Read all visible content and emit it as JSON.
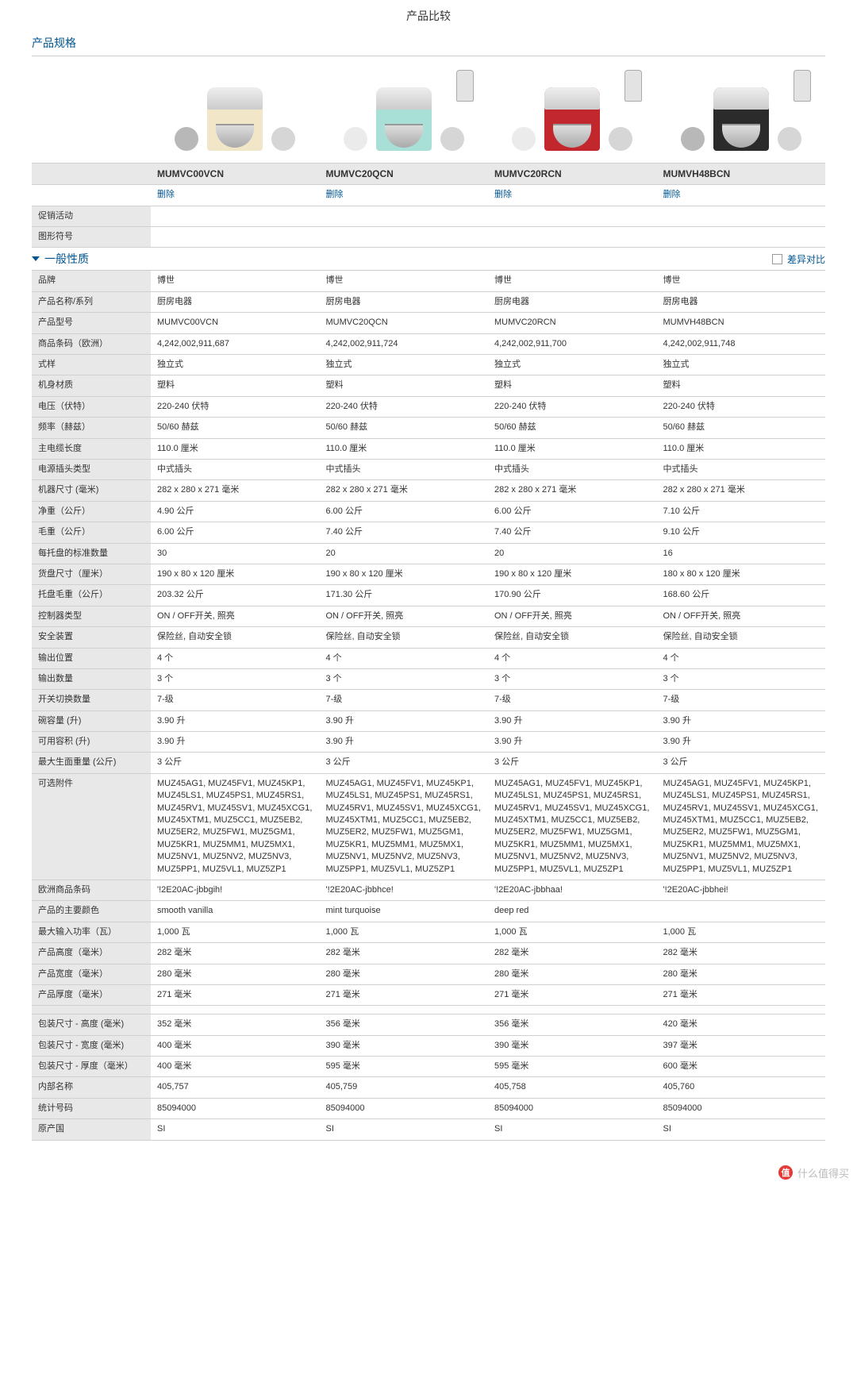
{
  "page_title": "产品比较",
  "section_spec": "产品规格",
  "section_general": "一般性质",
  "diff_label": "差异对比",
  "delete_label": "删除",
  "watermark": "什么值得买",
  "wm_badge": "值",
  "products": [
    {
      "model": "MUMVC00VCN",
      "body_color": "#f2e6c8",
      "acc_dark": true
    },
    {
      "model": "MUMVC20QCN",
      "body_color": "#a8e0d8",
      "acc_dark": false
    },
    {
      "model": "MUMVC20RCN",
      "body_color": "#c1272d",
      "acc_dark": false
    },
    {
      "model": "MUMVH48BCN",
      "body_color": "#2b2b2b",
      "acc_dark": true
    }
  ],
  "header_rows": [
    {
      "label": "促销活动",
      "vals": [
        "",
        "",
        "",
        ""
      ]
    },
    {
      "label": "图形符号",
      "vals": [
        "",
        "",
        "",
        ""
      ]
    }
  ],
  "spec_rows": [
    {
      "label": "品牌",
      "vals": [
        "博世",
        "博世",
        "博世",
        "博世"
      ]
    },
    {
      "label": "产品名称/系列",
      "vals": [
        "厨房电器",
        "厨房电器",
        "厨房电器",
        "厨房电器"
      ]
    },
    {
      "label": "产品型号",
      "vals": [
        "MUMVC00VCN",
        "MUMVC20QCN",
        "MUMVC20RCN",
        "MUMVH48BCN"
      ]
    },
    {
      "label": "商品条码（欧洲）",
      "vals": [
        "4,242,002,911,687",
        "4,242,002,911,724",
        "4,242,002,911,700",
        "4,242,002,911,748"
      ]
    },
    {
      "label": "式样",
      "vals": [
        "独立式",
        "独立式",
        "独立式",
        "独立式"
      ]
    },
    {
      "label": "机身材质",
      "vals": [
        "塑料",
        "塑料",
        "塑料",
        "塑料"
      ]
    },
    {
      "label": "电压（伏特）",
      "vals": [
        "220-240 伏特",
        "220-240 伏特",
        "220-240 伏特",
        "220-240 伏特"
      ]
    },
    {
      "label": "频率（赫兹）",
      "vals": [
        "50/60 赫兹",
        "50/60 赫兹",
        "50/60 赫兹",
        "50/60 赫兹"
      ]
    },
    {
      "label": "主电缆长度",
      "vals": [
        "110.0 厘米",
        "110.0 厘米",
        "110.0 厘米",
        "110.0 厘米"
      ]
    },
    {
      "label": "电源插头类型",
      "vals": [
        "中式插头",
        "中式插头",
        "中式插头",
        "中式插头"
      ]
    },
    {
      "label": "机器尺寸 (毫米)",
      "vals": [
        "282 x 280 x 271 毫米",
        "282 x 280 x 271 毫米",
        "282 x 280 x 271 毫米",
        "282 x 280 x 271 毫米"
      ]
    },
    {
      "label": "净重（公斤）",
      "vals": [
        "4.90 公斤",
        "6.00 公斤",
        "6.00 公斤",
        "7.10 公斤"
      ]
    },
    {
      "label": "毛重（公斤）",
      "vals": [
        "6.00 公斤",
        "7.40 公斤",
        "7.40 公斤",
        "9.10 公斤"
      ]
    },
    {
      "label": "每托盘的标准数量",
      "vals": [
        "30",
        "20",
        "20",
        "16"
      ]
    },
    {
      "label": "货盘尺寸（厘米）",
      "vals": [
        "190 x 80 x 120 厘米",
        "190 x 80 x 120 厘米",
        "190 x 80 x 120 厘米",
        "180 x 80 x 120 厘米"
      ]
    },
    {
      "label": "托盘毛重（公斤）",
      "vals": [
        "203.32 公斤",
        "171.30 公斤",
        "170.90 公斤",
        "168.60 公斤"
      ]
    },
    {
      "label": "控制器类型",
      "vals": [
        "ON / OFF开关, 照亮",
        "ON / OFF开关, 照亮",
        "ON / OFF开关, 照亮",
        "ON / OFF开关, 照亮"
      ]
    },
    {
      "label": "安全装置",
      "vals": [
        "保险丝, 自动安全锁",
        "保险丝, 自动安全锁",
        "保险丝, 自动安全锁",
        "保险丝, 自动安全锁"
      ]
    },
    {
      "label": "输出位置",
      "vals": [
        "4 个",
        "4 个",
        "4 个",
        "4 个"
      ]
    },
    {
      "label": "输出数量",
      "vals": [
        "3 个",
        "3 个",
        "3 个",
        "3 个"
      ]
    },
    {
      "label": "开关切换数量",
      "vals": [
        "7-级",
        "7-级",
        "7-级",
        "7-级"
      ]
    },
    {
      "label": "碗容量 (升)",
      "vals": [
        "3.90 升",
        "3.90 升",
        "3.90 升",
        "3.90 升"
      ]
    },
    {
      "label": "可用容积 (升)",
      "vals": [
        "3.90 升",
        "3.90 升",
        "3.90 升",
        "3.90 升"
      ]
    },
    {
      "label": "最大生面重量 (公斤)",
      "vals": [
        "3 公斤",
        "3 公斤",
        "3 公斤",
        "3 公斤"
      ]
    },
    {
      "label": "可选附件",
      "vals": [
        "MUZ45AG1, MUZ45FV1, MUZ45KP1, MUZ45LS1, MUZ45PS1, MUZ45RS1, MUZ45RV1, MUZ45SV1, MUZ45XCG1, MUZ45XTM1, MUZ5CC1, MUZ5EB2, MUZ5ER2, MUZ5FW1, MUZ5GM1, MUZ5KR1, MUZ5MM1, MUZ5MX1, MUZ5NV1, MUZ5NV2, MUZ5NV3, MUZ5PP1, MUZ5VL1, MUZ5ZP1",
        "MUZ45AG1, MUZ45FV1, MUZ45KP1, MUZ45LS1, MUZ45PS1, MUZ45RS1, MUZ45RV1, MUZ45SV1, MUZ45XCG1, MUZ45XTM1, MUZ5CC1, MUZ5EB2, MUZ5ER2, MUZ5FW1, MUZ5GM1, MUZ5KR1, MUZ5MM1, MUZ5MX1, MUZ5NV1, MUZ5NV2, MUZ5NV3, MUZ5PP1, MUZ5VL1, MUZ5ZP1",
        "MUZ45AG1, MUZ45FV1, MUZ45KP1, MUZ45LS1, MUZ45PS1, MUZ45RS1, MUZ45RV1, MUZ45SV1, MUZ45XCG1, MUZ45XTM1, MUZ5CC1, MUZ5EB2, MUZ5ER2, MUZ5FW1, MUZ5GM1, MUZ5KR1, MUZ5MM1, MUZ5MX1, MUZ5NV1, MUZ5NV2, MUZ5NV3, MUZ5PP1, MUZ5VL1, MUZ5ZP1",
        "MUZ45AG1, MUZ45FV1, MUZ45KP1, MUZ45LS1, MUZ45PS1, MUZ45RS1, MUZ45RV1, MUZ45SV1, MUZ45XCG1, MUZ45XTM1, MUZ5CC1, MUZ5EB2, MUZ5ER2, MUZ5FW1, MUZ5GM1, MUZ5KR1, MUZ5MM1, MUZ5MX1, MUZ5NV1, MUZ5NV2, MUZ5NV3, MUZ5PP1, MUZ5VL1, MUZ5ZP1"
      ]
    },
    {
      "label": "欧洲商品条码",
      "vals": [
        "'!2E20AC-jbbgih!",
        "'!2E20AC-jbbhce!",
        "'!2E20AC-jbbhaa!",
        "'!2E20AC-jbbhei!"
      ]
    },
    {
      "label": "产品的主要颜色",
      "vals": [
        "smooth vanilla",
        "mint turquoise",
        "deep red",
        ""
      ]
    },
    {
      "label": "最大输入功率（瓦）",
      "vals": [
        "1,000 瓦",
        "1,000 瓦",
        "1,000 瓦",
        "1,000 瓦"
      ]
    },
    {
      "label": "产品高度（毫米）",
      "vals": [
        "282 毫米",
        "282 毫米",
        "282 毫米",
        "282 毫米"
      ]
    },
    {
      "label": "产品宽度（毫米）",
      "vals": [
        "280 毫米",
        "280 毫米",
        "280 毫米",
        "280 毫米"
      ]
    },
    {
      "label": "产品厚度（毫米）",
      "vals": [
        "271 毫米",
        "271 毫米",
        "271 毫米",
        "271 毫米"
      ]
    },
    {
      "label": "",
      "vals": [
        "",
        "",
        "",
        ""
      ]
    },
    {
      "label": "包装尺寸 - 高度 (毫米)",
      "vals": [
        "352 毫米",
        "356 毫米",
        "356 毫米",
        "420 毫米"
      ]
    },
    {
      "label": "包装尺寸 - 宽度 (毫米)",
      "vals": [
        "400 毫米",
        "390 毫米",
        "390 毫米",
        "397 毫米"
      ]
    },
    {
      "label": "包装尺寸 - 厚度（毫米）",
      "vals": [
        "400 毫米",
        "595 毫米",
        "595 毫米",
        "600 毫米"
      ]
    },
    {
      "label": "内部名称",
      "vals": [
        "405,757",
        "405,759",
        "405,758",
        "405,760"
      ]
    },
    {
      "label": "统计号码",
      "vals": [
        "85094000",
        "85094000",
        "85094000",
        "85094000"
      ]
    },
    {
      "label": "原产国",
      "vals": [
        "SI",
        "SI",
        "SI",
        "SI"
      ]
    }
  ]
}
